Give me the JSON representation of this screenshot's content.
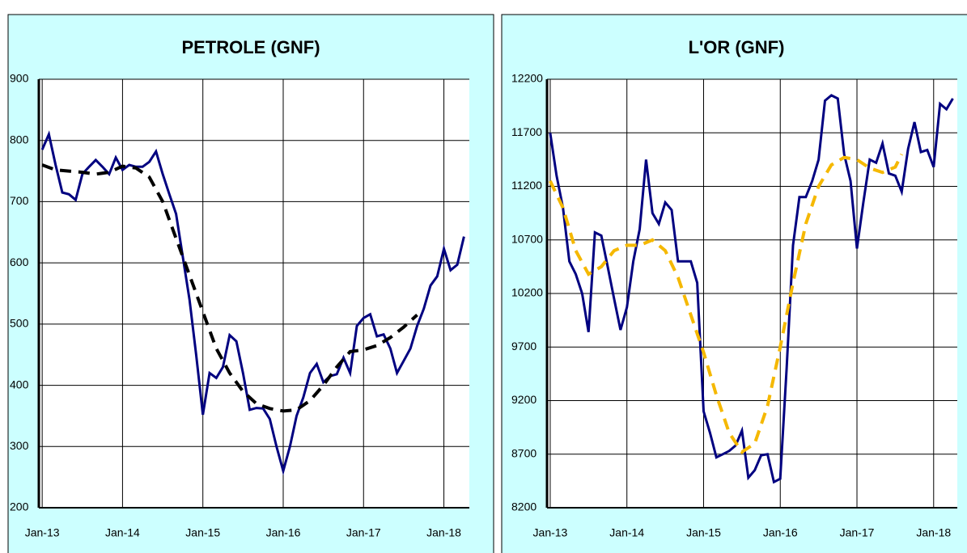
{
  "chart_data": [
    {
      "type": "line",
      "title": "PETROLE (GNF)",
      "xlim": [
        -0.5,
        63.8
      ],
      "xticks": [
        {
          "value": 0,
          "label": "Jan-13"
        },
        {
          "value": 12,
          "label": "Jan-14"
        },
        {
          "value": 24,
          "label": "Jan-15"
        },
        {
          "value": 36,
          "label": "Jan-16"
        },
        {
          "value": 48,
          "label": "Jan-17"
        },
        {
          "value": 60,
          "label": "Jan-18"
        }
      ],
      "ylim": [
        200,
        900
      ],
      "yticks": [
        200,
        300,
        400,
        500,
        600,
        700,
        800,
        900
      ],
      "grid": true,
      "series": [
        {
          "color": "#000080",
          "dashed": false,
          "x": [
            0,
            1,
            2,
            3,
            4,
            5,
            6,
            7,
            8,
            9,
            10,
            11,
            12,
            13,
            14,
            15,
            16,
            17,
            18,
            19,
            20,
            21,
            22,
            23,
            24,
            25,
            26,
            27,
            28,
            29,
            30,
            31,
            32,
            33,
            34,
            35,
            36,
            37,
            38,
            39,
            40,
            41,
            42,
            43,
            44,
            45,
            46,
            47,
            48,
            49,
            50,
            51,
            52,
            53,
            54,
            55,
            56,
            57,
            58,
            59,
            60,
            61,
            62,
            63
          ],
          "values": [
            785,
            810,
            760,
            715,
            712,
            703,
            745,
            757,
            768,
            757,
            745,
            772,
            752,
            760,
            757,
            757,
            765,
            782,
            745,
            712,
            680,
            610,
            540,
            450,
            352,
            420,
            412,
            430,
            482,
            472,
            420,
            360,
            363,
            362,
            345,
            300,
            260,
            300,
            350,
            380,
            420,
            435,
            405,
            415,
            418,
            445,
            420,
            497,
            510,
            516,
            480,
            483,
            460,
            420,
            440,
            460,
            497,
            525,
            563,
            578,
            623,
            588,
            597,
            643
          ]
        },
        {
          "color": "#000000",
          "dashed": true,
          "x": [
            0,
            2,
            4,
            6,
            8,
            10,
            12,
            14,
            16,
            18,
            20,
            22,
            24,
            26,
            28,
            30,
            32,
            34,
            36,
            38,
            40,
            42,
            44,
            46,
            48,
            50,
            52,
            54,
            56
          ],
          "values": [
            760,
            752,
            750,
            748,
            745,
            748,
            758,
            755,
            740,
            700,
            640,
            580,
            520,
            460,
            420,
            390,
            370,
            362,
            358,
            360,
            375,
            400,
            430,
            455,
            458,
            465,
            478,
            495,
            515
          ]
        }
      ]
    },
    {
      "type": "line",
      "title": "L'OR (GNF)",
      "xlim": [
        -0.5,
        63.7
      ],
      "xticks": [
        {
          "value": 0,
          "label": "Jan-13"
        },
        {
          "value": 12,
          "label": "Jan-14"
        },
        {
          "value": 24,
          "label": "Jan-15"
        },
        {
          "value": 36,
          "label": "Jan-16"
        },
        {
          "value": 48,
          "label": "Jan-17"
        },
        {
          "value": 60,
          "label": "Jan-18"
        }
      ],
      "ylim": [
        8200,
        12200
      ],
      "yticks": [
        8200,
        8700,
        9200,
        9700,
        10200,
        10700,
        11200,
        11700,
        12200
      ],
      "grid": true,
      "series": [
        {
          "color": "#000080",
          "dashed": false,
          "x": [
            0,
            1,
            2,
            3,
            4,
            5,
            6,
            7,
            8,
            9,
            10,
            11,
            12,
            13,
            14,
            15,
            16,
            17,
            18,
            19,
            20,
            21,
            22,
            23,
            24,
            25,
            26,
            27,
            28,
            29,
            30,
            31,
            32,
            33,
            34,
            35,
            36,
            37,
            38,
            39,
            40,
            41,
            42,
            43,
            44,
            45,
            46,
            47,
            48,
            49,
            50,
            51,
            52,
            53,
            54,
            55,
            56,
            57,
            58,
            59,
            60,
            61,
            62,
            63
          ],
          "values": [
            11700,
            11300,
            11000,
            10500,
            10380,
            10200,
            9840,
            10770,
            10740,
            10450,
            10150,
            9860,
            10070,
            10500,
            10800,
            11450,
            10950,
            10850,
            11050,
            10980,
            10500,
            10500,
            10500,
            10300,
            9100,
            8900,
            8670,
            8700,
            8730,
            8780,
            8920,
            8480,
            8550,
            8690,
            8700,
            8440,
            8470,
            9500,
            10650,
            11100,
            11100,
            11250,
            11450,
            12000,
            12050,
            12020,
            11500,
            11250,
            10620,
            11050,
            11450,
            11420,
            11600,
            11320,
            11300,
            11150,
            11550,
            11800,
            11520,
            11540,
            11380,
            11970,
            11920,
            12020
          ]
        },
        {
          "color": "#f5b800",
          "dashed": true,
          "x": [
            0,
            2,
            4,
            6,
            8,
            10,
            12,
            14,
            16,
            18,
            20,
            22,
            24,
            26,
            28,
            30,
            32,
            34,
            36,
            38,
            40,
            42,
            44,
            46,
            48,
            50,
            52,
            54,
            55
          ],
          "values": [
            11250,
            11000,
            10600,
            10380,
            10450,
            10600,
            10650,
            10650,
            10700,
            10600,
            10350,
            10000,
            9650,
            9250,
            8900,
            8720,
            8800,
            9150,
            9700,
            10300,
            10850,
            11200,
            11400,
            11470,
            11450,
            11370,
            11330,
            11380,
            11500
          ]
        }
      ]
    }
  ]
}
